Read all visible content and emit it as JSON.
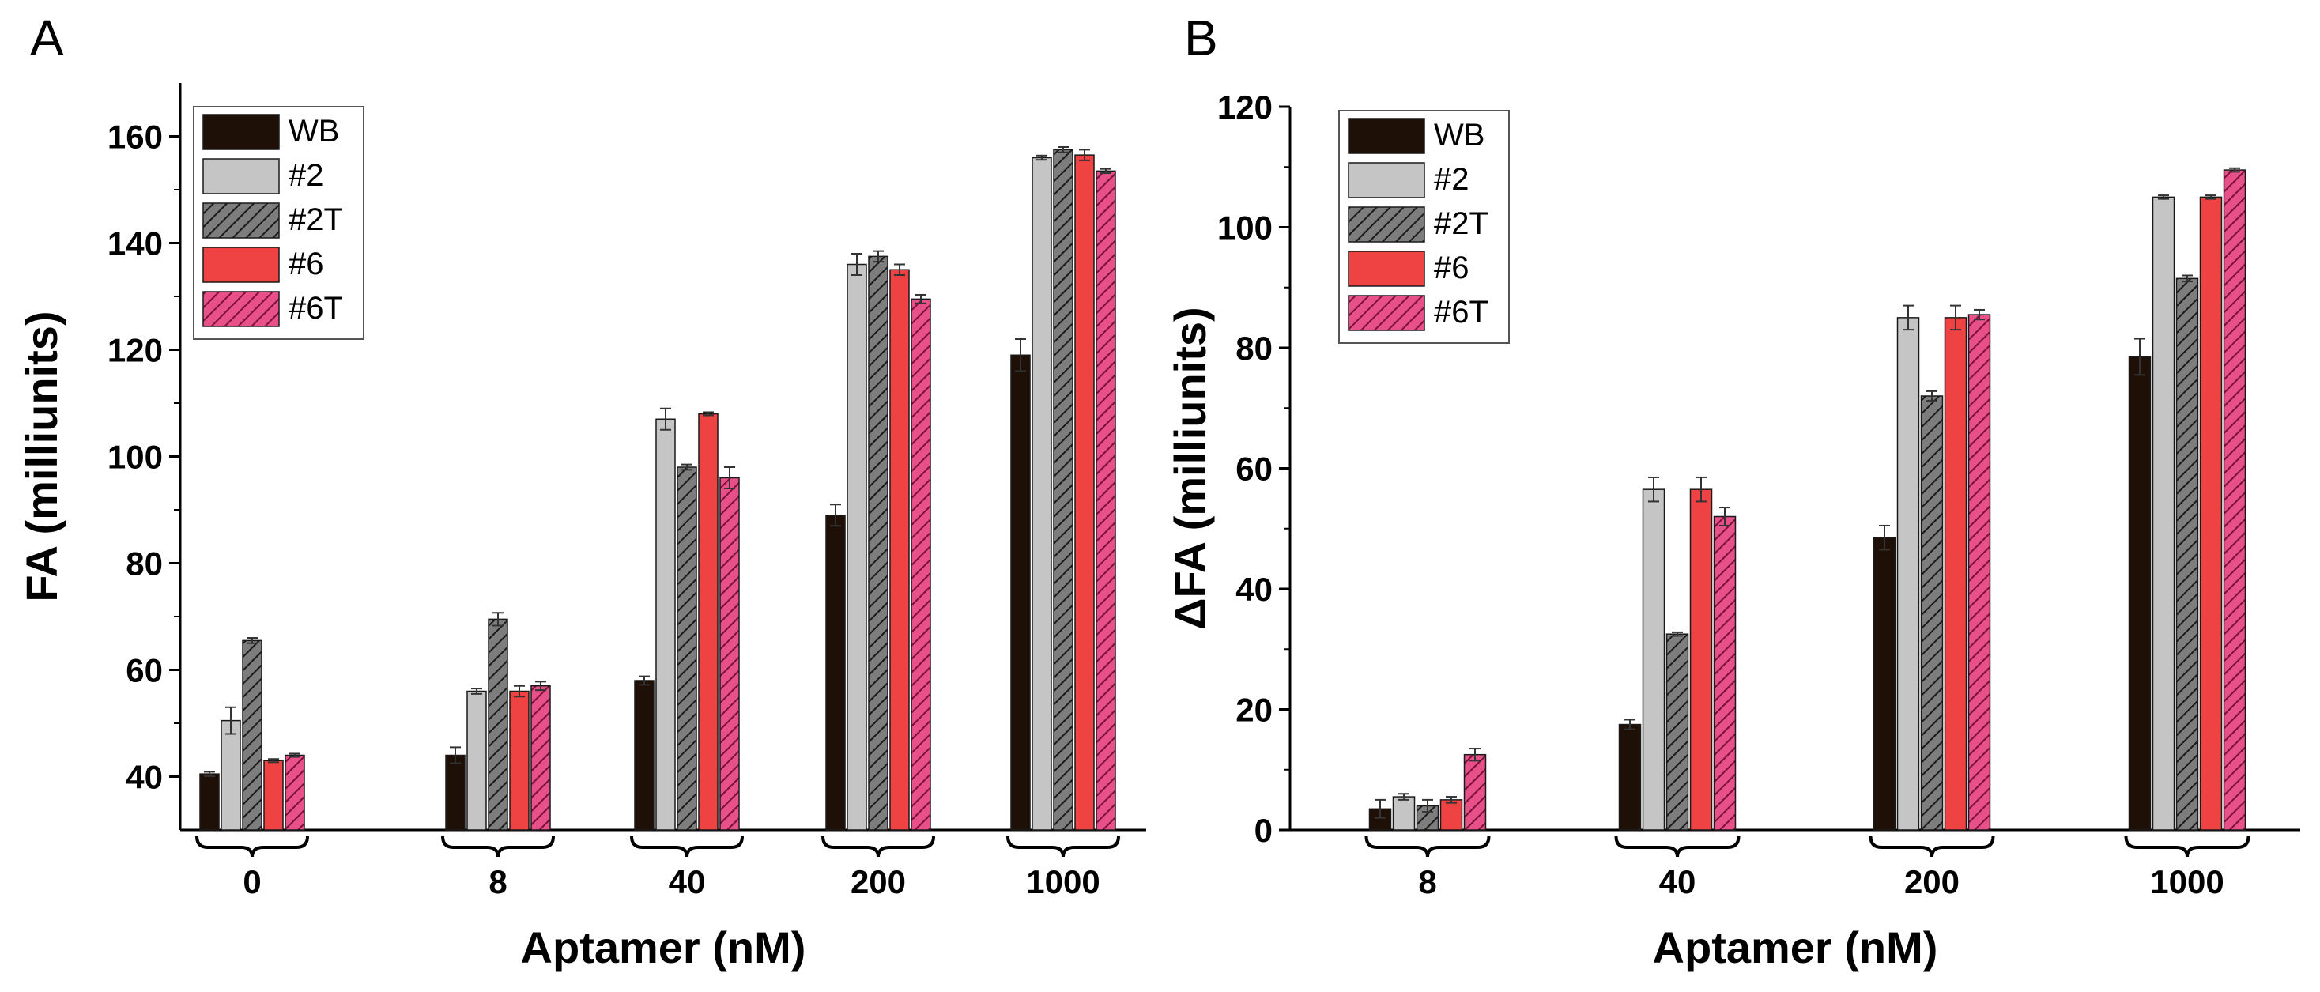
{
  "chart_data": [
    {
      "type": "bar",
      "panel": "A",
      "xlabel": "Aptamer (nM)",
      "ylabel": "FA (milliunits)",
      "ylim": [
        30,
        170
      ],
      "yticks": [
        40,
        60,
        80,
        100,
        120,
        140,
        160
      ],
      "categories": [
        "0",
        "8",
        "40",
        "200",
        "1000"
      ],
      "legend_position": "top-left",
      "grid": false,
      "series": [
        {
          "name": "WB",
          "color": "#1e1007",
          "pattern": "solid",
          "values": [
            40.5,
            44.0,
            58.0,
            89.0,
            119.0
          ],
          "errors": [
            0.4,
            1.5,
            0.8,
            2.0,
            3.0
          ]
        },
        {
          "name": "#2",
          "color": "#c5c5c5",
          "pattern": "solid",
          "values": [
            50.5,
            56.0,
            107.0,
            136.0,
            156.0
          ],
          "errors": [
            2.5,
            0.5,
            2.0,
            2.0,
            0.4
          ]
        },
        {
          "name": "#2T",
          "color": "#7d7d7d",
          "pattern": "hatched",
          "values": [
            65.5,
            69.5,
            98.0,
            137.5,
            157.5
          ],
          "errors": [
            0.5,
            1.2,
            0.5,
            1.0,
            0.5
          ]
        },
        {
          "name": "#6",
          "color": "#ef4343",
          "pattern": "solid",
          "values": [
            43.0,
            56.0,
            108.0,
            135.0,
            156.5
          ],
          "errors": [
            0.3,
            1.0,
            0.3,
            1.0,
            1.0
          ]
        },
        {
          "name": "#6T",
          "color": "#e8508a",
          "pattern": "hatched",
          "values": [
            44.0,
            57.0,
            96.0,
            129.5,
            153.5
          ],
          "errors": [
            0.3,
            0.8,
            2.0,
            0.8,
            0.4
          ]
        }
      ]
    },
    {
      "type": "bar",
      "panel": "B",
      "xlabel": "Aptamer (nM)",
      "ylabel": "ΔFA (milliunits)",
      "ylim": [
        0,
        120
      ],
      "yticks": [
        0,
        20,
        40,
        60,
        80,
        100,
        120
      ],
      "categories": [
        "8",
        "40",
        "200",
        "1000"
      ],
      "legend_position": "top-left",
      "grid": false,
      "series": [
        {
          "name": "WB",
          "color": "#1e1007",
          "pattern": "solid",
          "values": [
            3.5,
            17.5,
            48.5,
            78.5
          ],
          "errors": [
            1.5,
            0.8,
            2.0,
            3.0
          ]
        },
        {
          "name": "#2",
          "color": "#c5c5c5",
          "pattern": "solid",
          "values": [
            5.5,
            56.5,
            85.0,
            105.0
          ],
          "errors": [
            0.5,
            2.0,
            2.0,
            0.3
          ]
        },
        {
          "name": "#2T",
          "color": "#7d7d7d",
          "pattern": "hatched",
          "values": [
            4.0,
            32.5,
            72.0,
            91.5
          ],
          "errors": [
            1.0,
            0.3,
            0.8,
            0.5
          ]
        },
        {
          "name": "#6",
          "color": "#ef4343",
          "pattern": "solid",
          "values": [
            5.0,
            56.5,
            85.0,
            105.0
          ],
          "errors": [
            0.5,
            2.0,
            2.0,
            0.3
          ]
        },
        {
          "name": "#6T",
          "color": "#e8508a",
          "pattern": "hatched",
          "values": [
            12.5,
            52.0,
            85.5,
            109.5
          ],
          "errors": [
            1.0,
            1.5,
            0.8,
            0.3
          ]
        }
      ]
    }
  ]
}
